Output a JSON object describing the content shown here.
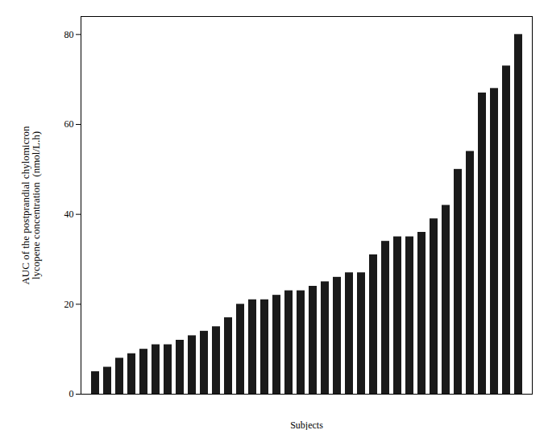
{
  "chart_data": {
    "type": "bar",
    "xlabel": "Subjects",
    "ylabel": "AUC of the postprandial chylomicron\nlycopene concentration  (nmol/L.h)",
    "categories": [
      null,
      null,
      null,
      null,
      null,
      null,
      null,
      null,
      null,
      null,
      null,
      null,
      null,
      null,
      null,
      null,
      null,
      null,
      null,
      null,
      null,
      null,
      null,
      null,
      null,
      null,
      null,
      null,
      null,
      null,
      null,
      null,
      null,
      null,
      null,
      null
    ],
    "values": [
      5,
      6,
      8,
      9,
      10,
      11,
      11,
      12,
      13,
      14,
      15,
      17,
      20,
      21,
      21,
      22,
      23,
      23,
      24,
      25,
      26,
      27,
      27,
      31,
      34,
      35,
      35,
      36,
      39,
      42,
      50,
      54,
      67,
      68,
      73,
      80
    ],
    "color": "#1a1a1a",
    "ylim": [
      0,
      84
    ],
    "yticks": [
      0,
      20,
      40,
      60,
      80
    ],
    "grid": false,
    "tick_labels": "y"
  }
}
